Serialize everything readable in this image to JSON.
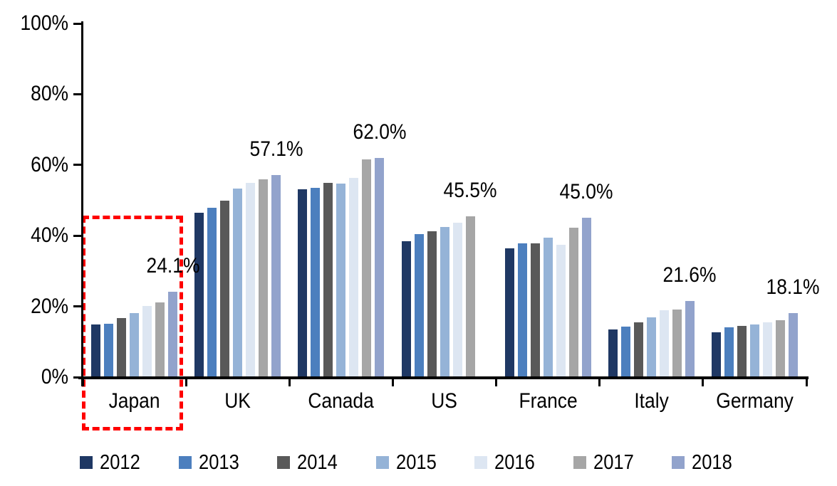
{
  "chart_data": {
    "type": "bar",
    "categories": [
      "Japan",
      "UK",
      "Canada",
      "US",
      "France",
      "Italy",
      "Germany"
    ],
    "series": [
      {
        "name": "2012",
        "color": "#1F3864",
        "values": [
          14.9,
          46.4,
          53.1,
          38.5,
          36.5,
          13.4,
          12.6
        ]
      },
      {
        "name": "2013",
        "color": "#4C7FBE",
        "values": [
          15.0,
          47.9,
          53.6,
          40.4,
          37.9,
          14.3,
          14.1
        ]
      },
      {
        "name": "2014",
        "color": "#595959",
        "values": [
          16.8,
          50.0,
          55.0,
          41.3,
          37.8,
          15.5,
          14.4
        ]
      },
      {
        "name": "2015",
        "color": "#95B3D7",
        "values": [
          18.1,
          53.3,
          54.8,
          42.4,
          39.4,
          17.0,
          14.9
        ]
      },
      {
        "name": "2016",
        "color": "#DDE6F2",
        "values": [
          20.1,
          54.9,
          56.4,
          43.7,
          37.5,
          19.0,
          15.4
        ]
      },
      {
        "name": "2017",
        "color": "#A6A6A6",
        "values": [
          21.1,
          56.0,
          61.6,
          45.5,
          42.3,
          19.2,
          16.0
        ]
      },
      {
        "name": "2018",
        "color": "#92A3CC",
        "values": [
          24.1,
          57.1,
          62.0,
          null,
          45.0,
          21.6,
          18.1
        ]
      }
    ],
    "data_labels": [
      {
        "category": "Japan",
        "series": "2018",
        "text": "24.1%"
      },
      {
        "category": "UK",
        "series": "2018",
        "text": "57.1%"
      },
      {
        "category": "Canada",
        "series": "2018",
        "text": "62.0%"
      },
      {
        "category": "US",
        "series": "2017",
        "text": "45.5%"
      },
      {
        "category": "France",
        "series": "2018",
        "text": "45.0%"
      },
      {
        "category": "Italy",
        "series": "2018",
        "text": "21.6%"
      },
      {
        "category": "Germany",
        "series": "2018",
        "text": "18.1%"
      }
    ],
    "y_ticks": [
      "100%",
      "80%",
      "60%",
      "40%",
      "20%",
      "0%"
    ],
    "ylim": [
      0,
      100
    ],
    "grid": "off",
    "legend": {
      "position": "bottom",
      "entries": [
        "2012",
        "2013",
        "2014",
        "2015",
        "2016",
        "2017",
        "2018"
      ]
    },
    "highlight": {
      "category": "Japan",
      "style": "dashed-box",
      "color": "#FF0000"
    }
  }
}
